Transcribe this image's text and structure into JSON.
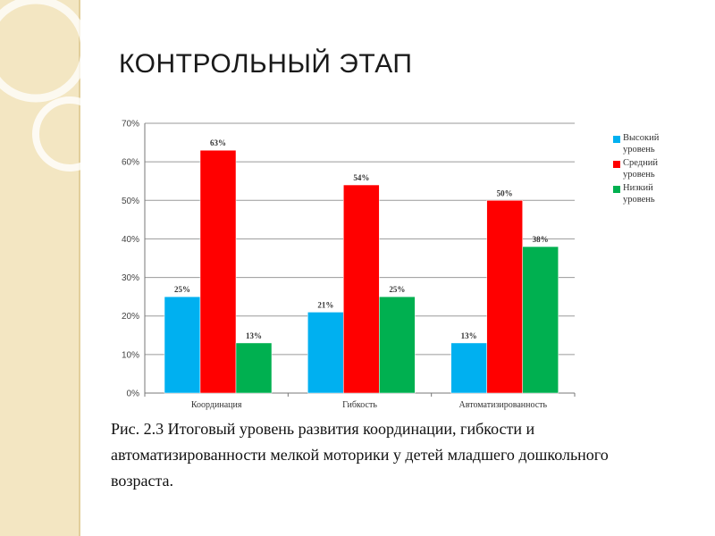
{
  "slide": {
    "title": "КОНТРОЛЬНЫЙ ЭТАП",
    "caption_lines": [
      "Рис. 2.3 Итоговый уровень развития координации, гибкости и",
      "автоматизированности мелкой моторики у детей младшего дошкольного",
      "возраста."
    ]
  },
  "chart_data": {
    "type": "bar",
    "categories": [
      "Координация",
      "Гибкость",
      "Автоматизированность"
    ],
    "series": [
      {
        "name": "Высокий уровень",
        "values": [
          25,
          21,
          13
        ],
        "labels": [
          "25%",
          "21%",
          "13%"
        ],
        "color": "#00b0f0"
      },
      {
        "name": "Средний уровень",
        "values": [
          63,
          54,
          50
        ],
        "labels": [
          "63%",
          "54%",
          "50%"
        ],
        "color": "#ff0000"
      },
      {
        "name": "Низкий уровень",
        "values": [
          13,
          25,
          38
        ],
        "labels": [
          "13%",
          "25%",
          "38%"
        ],
        "color": "#00b050"
      }
    ],
    "y_ticks": [
      "0%",
      "10%",
      "20%",
      "30%",
      "40%",
      "50%",
      "60%",
      "70%"
    ],
    "ylim": [
      0,
      70
    ],
    "legend_labels": [
      "Высокий уровень",
      "Средний уровень",
      "Низкий уровень"
    ],
    "grid": true,
    "legend_position": "right"
  }
}
